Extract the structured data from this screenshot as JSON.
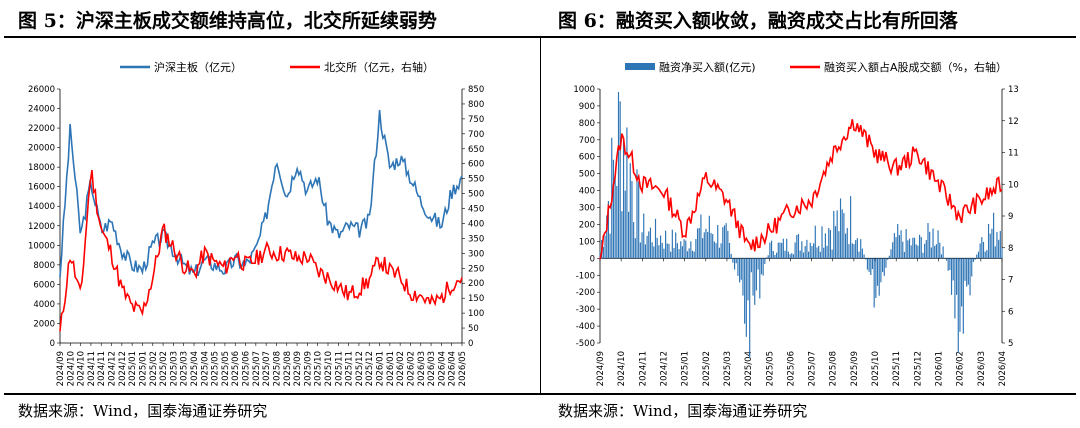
{
  "figures": [
    {
      "title": "图 5：沪深主板成交额维持高位，北交所延续弱势",
      "source": "数据来源：Wind，国泰海通证券研究"
    },
    {
      "title": "图 6：融资买入额收敛，融资成交占比有所回落",
      "source": "数据来源：Wind，国泰海通证券研究"
    }
  ],
  "chart_data": [
    {
      "type": "line",
      "title": "",
      "legend": [
        "沪深主板（亿元）",
        "北交所（亿元，右轴）"
      ],
      "legend_position": "top",
      "colors": [
        "#2e75b6",
        "#ff0000"
      ],
      "x_ticks": [
        "2024/09",
        "2024/10",
        "2024/10",
        "2024/11",
        "2024/11",
        "2024/12",
        "2024/12",
        "2025/01",
        "2025/01",
        "2025/02",
        "2025/02",
        "2025/03",
        "2025/03",
        "2025/04",
        "2025/04",
        "2025/05",
        "2025/05",
        "2025/06",
        "2025/06",
        "2025/07",
        "2025/07",
        "2025/08",
        "2025/08",
        "2025/09",
        "2025/09",
        "2025/10",
        "2025/10",
        "2025/11",
        "2025/11",
        "2025/12",
        "2025/12",
        "2026/01",
        "2026/01",
        "2026/02",
        "2026/02",
        "2026/03",
        "2026/03",
        "2026/04",
        "2026/04",
        "2026/05"
      ],
      "y_left": {
        "min": 0,
        "max": 26000,
        "step": 2000
      },
      "y_right": {
        "min": 0,
        "max": 850,
        "step": 50
      },
      "series": [
        {
          "name": "沪深主板（亿元）",
          "axis": "left",
          "x": [
            "2024/09",
            "2024/10",
            "2024/10",
            "2024/11",
            "2024/11",
            "2024/12",
            "2024/12",
            "2025/01",
            "2025/01",
            "2025/02",
            "2025/02",
            "2025/03",
            "2025/03",
            "2025/04",
            "2025/04",
            "2025/05",
            "2025/05",
            "2025/06",
            "2025/06",
            "2025/07",
            "2025/07",
            "2025/08",
            "2025/08",
            "2025/09",
            "2025/09",
            "2025/10",
            "2025/10",
            "2025/11",
            "2025/11",
            "2025/12",
            "2025/12",
            "2026/01",
            "2026/01",
            "2026/02",
            "2026/02",
            "2026/03",
            "2026/03",
            "2026/04",
            "2026/04",
            "2026/05"
          ],
          "values": [
            7000,
            22000,
            11000,
            16500,
            11500,
            12500,
            9500,
            8000,
            7500,
            10000,
            11000,
            9500,
            8000,
            7000,
            8500,
            8000,
            7500,
            8500,
            8000,
            9500,
            13000,
            19000,
            15000,
            18500,
            15500,
            17000,
            12500,
            11000,
            12000,
            11500,
            12500,
            23500,
            18000,
            19000,
            17000,
            14500,
            13000,
            12000,
            15500,
            17000
          ]
        },
        {
          "name": "北交所（亿元，右轴）",
          "axis": "right",
          "x": [
            "2024/09",
            "2024/10",
            "2024/10",
            "2024/11",
            "2024/11",
            "2024/12",
            "2024/12",
            "2025/01",
            "2025/01",
            "2025/02",
            "2025/02",
            "2025/03",
            "2025/03",
            "2025/04",
            "2025/04",
            "2025/05",
            "2025/05",
            "2025/06",
            "2025/06",
            "2025/07",
            "2025/07",
            "2025/08",
            "2025/08",
            "2025/09",
            "2025/09",
            "2025/10",
            "2025/10",
            "2025/11",
            "2025/11",
            "2025/12",
            "2025/12",
            "2026/01",
            "2026/01",
            "2026/02",
            "2026/02",
            "2026/03",
            "2026/03",
            "2026/04",
            "2026/04",
            "2026/05"
          ],
          "values": [
            30,
            300,
            150,
            580,
            380,
            300,
            180,
            120,
            100,
            220,
            380,
            320,
            260,
            230,
            300,
            270,
            250,
            300,
            260,
            280,
            310,
            300,
            300,
            280,
            290,
            240,
            220,
            190,
            160,
            180,
            210,
            280,
            240,
            220,
            170,
            160,
            130,
            150,
            200,
            220
          ]
        }
      ]
    },
    {
      "type": "bar",
      "title": "",
      "legend": [
        "融资净买入额(亿元)",
        "融资买入额占A股成交额（%，右轴）"
      ],
      "legend_position": "top",
      "colors": [
        "#2e75b6",
        "#ff0000"
      ],
      "x_ticks": [
        "2024/09",
        "2024/10",
        "2024/11",
        "2024/12",
        "2025/01",
        "2025/02",
        "2025/03",
        "2025/04",
        "2025/05",
        "2025/06",
        "2025/07",
        "2025/08",
        "2025/09",
        "2025/10",
        "2025/11",
        "2025/12",
        "2026/01",
        "2026/02",
        "2026/03",
        "2026/04"
      ],
      "y_left": {
        "min": -500,
        "max": 1000,
        "step": 100
      },
      "y_right": {
        "min": 5,
        "max": 13,
        "step": 1
      },
      "series": [
        {
          "name": "融资净买入额(亿元)",
          "axis": "left",
          "type": "bar",
          "x": [
            "2024/09",
            "2024/10",
            "2024/11",
            "2024/12",
            "2025/01",
            "2025/02",
            "2025/03",
            "2025/04",
            "2025/05",
            "2025/06",
            "2025/07",
            "2025/08",
            "2025/09",
            "2025/10",
            "2025/11",
            "2025/12",
            "2026/01",
            "2026/02",
            "2026/03",
            "2026/04"
          ],
          "values": [
            50,
            980,
            200,
            150,
            100,
            220,
            150,
            -480,
            80,
            100,
            150,
            250,
            300,
            -250,
            150,
            100,
            200,
            -480,
            150,
            250
          ]
        },
        {
          "name": "融资买入额占A股成交额（%，右轴）",
          "axis": "right",
          "type": "line",
          "x": [
            "2024/09",
            "2024/10",
            "2024/11",
            "2024/12",
            "2025/01",
            "2025/02",
            "2025/03",
            "2025/04",
            "2025/05",
            "2025/06",
            "2025/07",
            "2025/08",
            "2025/09",
            "2025/10",
            "2025/11",
            "2025/12",
            "2026/01",
            "2026/02",
            "2026/03",
            "2026/04"
          ],
          "values": [
            7.5,
            11.5,
            10.0,
            9.8,
            8.5,
            10.2,
            9.5,
            8.0,
            8.5,
            9.2,
            9.5,
            11.0,
            12.0,
            11.0,
            10.5,
            11.0,
            10.0,
            9.0,
            9.5,
            10.0
          ]
        }
      ]
    }
  ]
}
